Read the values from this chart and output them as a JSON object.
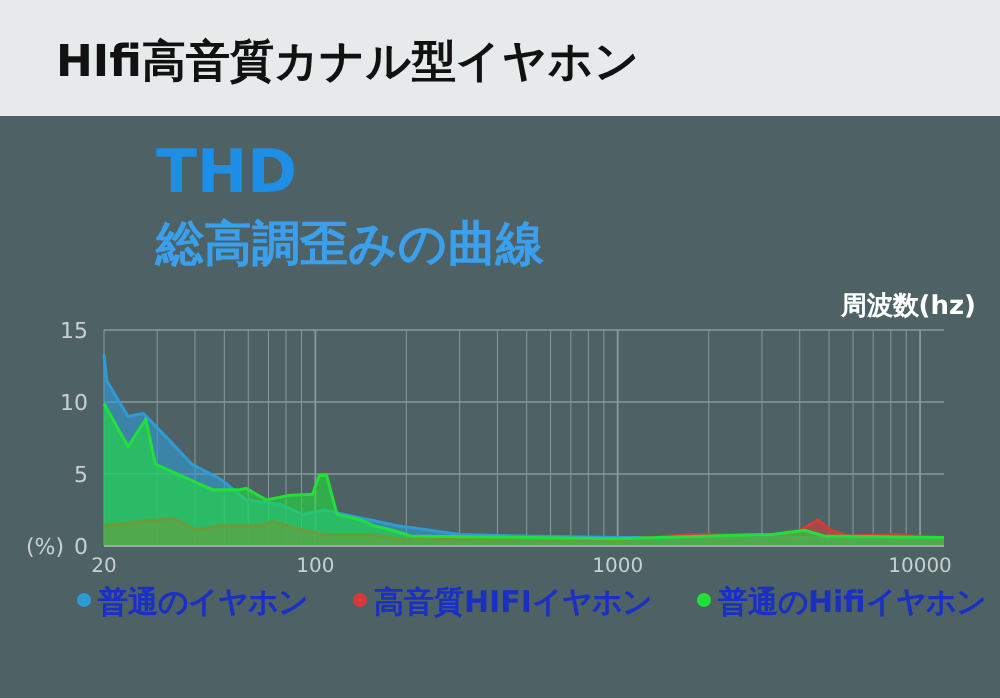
{
  "chart_data": {
    "type": "area",
    "title": "HIfi高音質カナル型イヤホン",
    "subtitle": "THD\n総高調歪みの曲線",
    "xlabel": "周波数(hz)",
    "ylabel": "(%)",
    "log": "x",
    "xlim": [
      20,
      12000
    ],
    "xticks": [
      20,
      100,
      1000,
      10000
    ],
    "ylim": [
      0,
      15
    ],
    "yticks": [
      0,
      5,
      10,
      15
    ],
    "grid": true,
    "legend": "bottom",
    "series": [
      {
        "name": "普通のイヤホン",
        "color": "#2f9bd6",
        "x": [
          20,
          20.4,
          24,
          27,
          32,
          39,
          49,
          59,
          76,
          91,
          107,
          130,
          187,
          301,
          477,
          1000,
          4150,
          10000,
          12000
        ],
        "values": [
          13.3,
          11.5,
          9.0,
          9.2,
          7.6,
          5.7,
          4.6,
          3.2,
          2.9,
          2.2,
          2.5,
          2.1,
          1.4,
          0.8,
          0.7,
          0.6,
          0.6,
          0.5,
          0.5
        ]
      },
      {
        "name": "高音質HIFIイヤホン",
        "color": "#d63a3a",
        "x": [
          20,
          26.5,
          34,
          40.5,
          49,
          66,
          72,
          91,
          107,
          150,
          187,
          1000,
          1720,
          2800,
          3800,
          4600,
          5050,
          5820,
          8300,
          12000
        ],
        "values": [
          1.4,
          1.7,
          1.9,
          1.1,
          1.4,
          1.4,
          1.7,
          1.1,
          0.8,
          0.8,
          0.5,
          0.4,
          0.8,
          0.8,
          0.8,
          1.8,
          1.1,
          0.7,
          0.8,
          0.5
        ]
      },
      {
        "name": "普通のHifiイヤホン",
        "color": "#22e03a",
        "x": [
          20,
          24,
          27.5,
          29.6,
          38.5,
          46,
          56,
          59,
          69,
          81,
          98,
          103,
          109,
          118,
          142,
          156,
          180,
          207,
          1000,
          3230,
          4150,
          4810,
          12000
        ],
        "values": [
          9.9,
          6.9,
          8.8,
          5.7,
          4.6,
          3.9,
          3.9,
          4.0,
          3.2,
          3.5,
          3.6,
          4.9,
          4.9,
          2.2,
          1.8,
          1.4,
          1.1,
          0.7,
          0.5,
          0.8,
          1.1,
          0.7,
          0.6
        ]
      }
    ]
  }
}
